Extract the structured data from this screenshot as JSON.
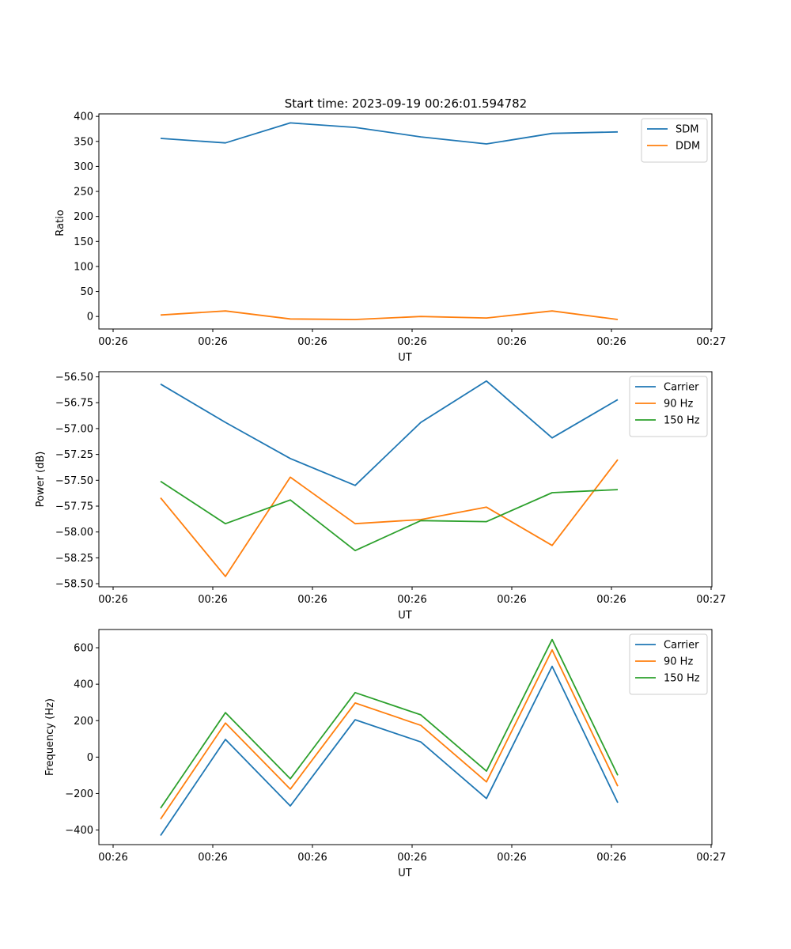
{
  "figure_title": "Start time: 2023-09-19 00:26:01.594782",
  "chart_data": [
    {
      "type": "line",
      "xlabel": "UT",
      "ylabel": "Ratio",
      "x_tick_labels": [
        "00:26",
        "00:26",
        "00:26",
        "00:26",
        "00:26",
        "00:26",
        "00:27"
      ],
      "y_ticks": [
        0,
        50,
        100,
        150,
        200,
        250,
        300,
        350,
        400
      ],
      "y_tick_labels": [
        "0",
        "50",
        "100",
        "150",
        "200",
        "250",
        "300",
        "350",
        "400"
      ],
      "ylim": [
        -25,
        405
      ],
      "legend": "top-right",
      "series": [
        {
          "name": "SDM",
          "color": "#1f77b4",
          "values": [
            356,
            347,
            387,
            378,
            359,
            345,
            366,
            369
          ]
        },
        {
          "name": "DDM",
          "color": "#ff7f0e",
          "values": [
            3,
            11,
            -5,
            -6,
            0,
            -3,
            11,
            -6
          ]
        }
      ]
    },
    {
      "type": "line",
      "xlabel": "UT",
      "ylabel": "Power (dB)",
      "x_tick_labels": [
        "00:26",
        "00:26",
        "00:26",
        "00:26",
        "00:26",
        "00:26",
        "00:27"
      ],
      "y_ticks": [
        -58.5,
        -58.25,
        -58.0,
        -57.75,
        -57.5,
        -57.25,
        -57.0,
        -56.75,
        -56.5
      ],
      "y_tick_labels": [
        "−58.50",
        "−58.25",
        "−58.00",
        "−57.75",
        "−57.50",
        "−57.25",
        "−57.00",
        "−56.75",
        "−56.50"
      ],
      "ylim": [
        -58.53,
        -56.45
      ],
      "legend": "top-right",
      "series": [
        {
          "name": "Carrier",
          "color": "#1f77b4",
          "values": [
            -56.57,
            -56.94,
            -57.29,
            -57.55,
            -56.94,
            -56.54,
            -57.09,
            -56.72
          ]
        },
        {
          "name": "90 Hz",
          "color": "#ff7f0e",
          "values": [
            -57.67,
            -58.43,
            -57.47,
            -57.92,
            -57.88,
            -57.76,
            -58.13,
            -57.3
          ]
        },
        {
          "name": "150 Hz",
          "color": "#2ca02c",
          "values": [
            -57.51,
            -57.92,
            -57.69,
            -58.18,
            -57.89,
            -57.9,
            -57.62,
            -57.59
          ]
        }
      ]
    },
    {
      "type": "line",
      "xlabel": "UT",
      "ylabel": "Frequency (Hz)",
      "x_tick_labels": [
        "00:26",
        "00:26",
        "00:26",
        "00:26",
        "00:26",
        "00:26",
        "00:27"
      ],
      "y_ticks": [
        -400,
        -200,
        0,
        200,
        400,
        600
      ],
      "y_tick_labels": [
        "−400",
        "−200",
        "0",
        "200",
        "400",
        "600"
      ],
      "ylim": [
        -480,
        700
      ],
      "legend": "top-right",
      "series": [
        {
          "name": "Carrier",
          "color": "#1f77b4",
          "values": [
            -430,
            97,
            -268,
            205,
            83,
            -227,
            498,
            -250
          ]
        },
        {
          "name": "90 Hz",
          "color": "#ff7f0e",
          "values": [
            -340,
            187,
            -176,
            297,
            174,
            -136,
            588,
            -160
          ]
        },
        {
          "name": "150 Hz",
          "color": "#2ca02c",
          "values": [
            -280,
            244,
            -119,
            354,
            232,
            -77,
            645,
            -100
          ]
        }
      ]
    }
  ]
}
